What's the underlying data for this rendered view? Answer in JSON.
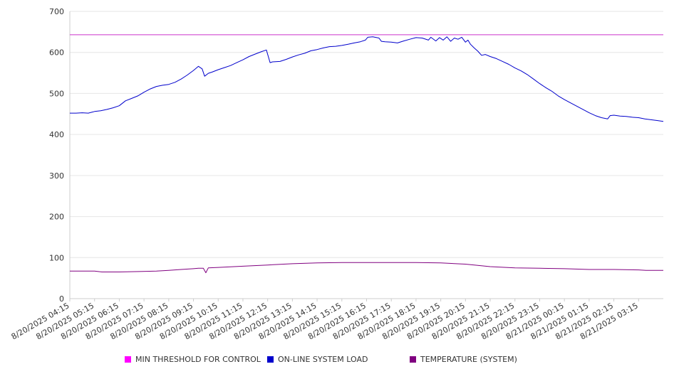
{
  "chart_data": {
    "type": "line",
    "title": "",
    "xlabel": "",
    "ylabel": "",
    "ylim": [
      0,
      700
    ],
    "yticks": [
      0,
      100,
      200,
      300,
      400,
      500,
      600,
      700
    ],
    "grid": true,
    "legend_position": "bottom",
    "categories": [
      "8/20/2025 04:15",
      "8/20/2025 05:15",
      "8/20/2025 06:15",
      "8/20/2025 07:15",
      "8/20/2025 08:15",
      "8/20/2025 09:15",
      "8/20/2025 10:15",
      "8/20/2025 11:15",
      "8/20/2025 12:15",
      "8/20/2025 13:15",
      "8/20/2025 14:15",
      "8/20/2025 15:15",
      "8/20/2025 16:15",
      "8/20/2025 17:15",
      "8/20/2025 18:15",
      "8/20/2025 19:15",
      "8/20/2025 20:15",
      "8/20/2025 21:15",
      "8/20/2025 22:15",
      "8/20/2025 23:15",
      "8/21/2025 00:15",
      "8/21/2025 01:15",
      "8/21/2025 02:15",
      "8/21/2025 03:15"
    ],
    "series": [
      {
        "name": "MIN THRESHOLD FOR CONTROL",
        "color": "#cc33cc",
        "points": [
          [
            0,
            643
          ],
          [
            24,
            643
          ]
        ]
      },
      {
        "name": "ON-LINE SYSTEM LOAD",
        "color": "#0000cc",
        "points": [
          [
            0,
            452
          ],
          [
            0.25,
            452
          ],
          [
            0.5,
            453
          ],
          [
            0.75,
            452
          ],
          [
            1.0,
            456
          ],
          [
            1.25,
            458
          ],
          [
            1.5,
            461
          ],
          [
            1.75,
            465
          ],
          [
            2.0,
            470
          ],
          [
            2.25,
            482
          ],
          [
            2.5,
            488
          ],
          [
            2.75,
            494
          ],
          [
            3.0,
            503
          ],
          [
            3.25,
            511
          ],
          [
            3.5,
            517
          ],
          [
            3.75,
            520
          ],
          [
            4.0,
            522
          ],
          [
            4.25,
            527
          ],
          [
            4.5,
            535
          ],
          [
            4.75,
            545
          ],
          [
            5.0,
            556
          ],
          [
            5.2,
            566
          ],
          [
            5.35,
            560
          ],
          [
            5.45,
            542
          ],
          [
            5.6,
            549
          ],
          [
            5.75,
            552
          ],
          [
            6.0,
            558
          ],
          [
            6.25,
            563
          ],
          [
            6.5,
            568
          ],
          [
            6.75,
            575
          ],
          [
            7.0,
            582
          ],
          [
            7.25,
            590
          ],
          [
            7.5,
            596
          ],
          [
            7.75,
            602
          ],
          [
            7.95,
            606
          ],
          [
            8.1,
            575
          ],
          [
            8.2,
            577
          ],
          [
            8.5,
            578
          ],
          [
            8.75,
            583
          ],
          [
            9.0,
            589
          ],
          [
            9.25,
            594
          ],
          [
            9.5,
            598
          ],
          [
            9.75,
            604
          ],
          [
            10.0,
            607
          ],
          [
            10.25,
            611
          ],
          [
            10.5,
            614
          ],
          [
            10.75,
            615
          ],
          [
            11.0,
            617
          ],
          [
            11.25,
            620
          ],
          [
            11.5,
            623
          ],
          [
            11.75,
            626
          ],
          [
            11.95,
            630
          ],
          [
            12.05,
            637
          ],
          [
            12.25,
            638
          ],
          [
            12.5,
            635
          ],
          [
            12.6,
            627
          ],
          [
            12.75,
            626
          ],
          [
            13.0,
            625
          ],
          [
            13.25,
            623
          ],
          [
            13.5,
            628
          ],
          [
            13.75,
            632
          ],
          [
            14.0,
            636
          ],
          [
            14.25,
            635
          ],
          [
            14.5,
            630
          ],
          [
            14.6,
            637
          ],
          [
            14.8,
            628
          ],
          [
            14.95,
            636
          ],
          [
            15.1,
            630
          ],
          [
            15.25,
            638
          ],
          [
            15.4,
            627
          ],
          [
            15.55,
            635
          ],
          [
            15.7,
            632
          ],
          [
            15.85,
            637
          ],
          [
            16.0,
            625
          ],
          [
            16.1,
            630
          ],
          [
            16.2,
            620
          ],
          [
            16.35,
            611
          ],
          [
            16.5,
            603
          ],
          [
            16.65,
            593
          ],
          [
            16.8,
            595
          ],
          [
            17.0,
            590
          ],
          [
            17.25,
            585
          ],
          [
            17.5,
            578
          ],
          [
            17.75,
            571
          ],
          [
            18.0,
            562
          ],
          [
            18.25,
            555
          ],
          [
            18.5,
            546
          ],
          [
            18.75,
            535
          ],
          [
            19.0,
            524
          ],
          [
            19.25,
            514
          ],
          [
            19.5,
            505
          ],
          [
            19.75,
            494
          ],
          [
            20.0,
            485
          ],
          [
            20.25,
            477
          ],
          [
            20.5,
            469
          ],
          [
            20.75,
            461
          ],
          [
            21.0,
            453
          ],
          [
            21.25,
            446
          ],
          [
            21.5,
            441
          ],
          [
            21.75,
            438
          ],
          [
            21.85,
            446
          ],
          [
            22.0,
            447
          ],
          [
            22.25,
            445
          ],
          [
            22.5,
            444
          ],
          [
            22.75,
            442
          ],
          [
            23.0,
            441
          ],
          [
            23.25,
            438
          ],
          [
            23.5,
            436
          ],
          [
            23.75,
            434
          ],
          [
            24.0,
            432
          ]
        ]
      },
      {
        "name": "TEMPERATURE (SYSTEM)",
        "color": "#800080",
        "points": [
          [
            0,
            67
          ],
          [
            1,
            67
          ],
          [
            1.3,
            65
          ],
          [
            2,
            65
          ],
          [
            2.8,
            66
          ],
          [
            3.5,
            67
          ],
          [
            4,
            69
          ],
          [
            4.5,
            71
          ],
          [
            5.0,
            73
          ],
          [
            5.2,
            74
          ],
          [
            5.4,
            74
          ],
          [
            5.5,
            63
          ],
          [
            5.6,
            75
          ],
          [
            6,
            76
          ],
          [
            7,
            79
          ],
          [
            8,
            82
          ],
          [
            9,
            85
          ],
          [
            10,
            87
          ],
          [
            11,
            88
          ],
          [
            12,
            88
          ],
          [
            13,
            88
          ],
          [
            14,
            88
          ],
          [
            15,
            87
          ],
          [
            16,
            84
          ],
          [
            16.5,
            81
          ],
          [
            17,
            78
          ],
          [
            18,
            75
          ],
          [
            19,
            74
          ],
          [
            20,
            73
          ],
          [
            21,
            71
          ],
          [
            22,
            71
          ],
          [
            23,
            70
          ],
          [
            23.3,
            69
          ],
          [
            24,
            69
          ]
        ]
      }
    ]
  }
}
